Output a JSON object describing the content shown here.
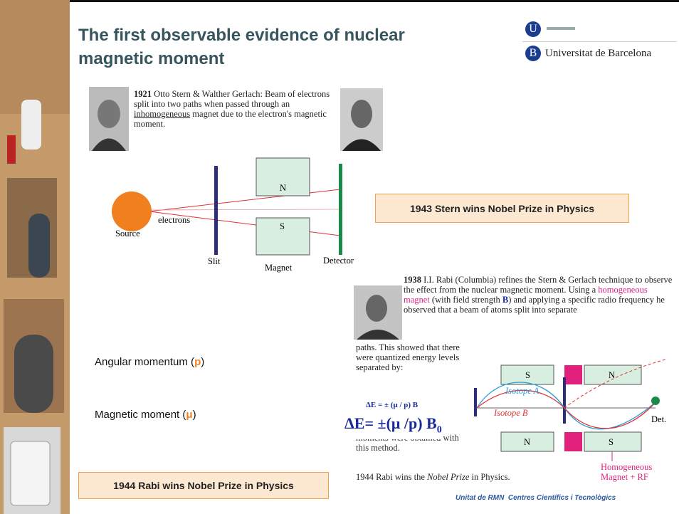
{
  "header": {
    "title_lines": [
      "The first observable evidence of nuclear",
      "magnetic moment"
    ],
    "logo_letters": [
      "U",
      "B"
    ],
    "logo_text": "Universitat de Barcelona"
  },
  "stern_gerlach": {
    "year": "1921",
    "text_start": "Otto Stern & Walther Gerlach: Beam of electrons split into two paths when passed through an",
    "underlined": "inhomogeneous",
    "text_end": "magnet due to the electron's magnetic moment.",
    "diagram": {
      "north": "N",
      "south": "S",
      "source": "Source",
      "electrons": "electrons",
      "slit": "Slit",
      "magnet": "Magnet",
      "detector": "Detector"
    }
  },
  "nobel_1943": "1943 Stern wins Nobel Prize in Physics",
  "rabi": {
    "year": "1938",
    "text_a": "I.I. Rabi (Columbia) refines the Stern & Gerlach technique to observe the effect from the nuclear magnetic moment.  Using a",
    "highlight": "homogeneous magnet",
    "text_b": "(with field strength",
    "bold_b": "B",
    "text_c": ") and applying a specific radio frequency he observed that a beam of atoms split into separate",
    "text_d": "paths.  This showed that there were quantized energy levels separated by:",
    "formula_small": "ΔE = ± (μ / p) B",
    "formula_big": "ΔE= ±(μ /p) B",
    "formula_sub": "0",
    "hidden_text": "moments were obtained with this method.",
    "nobel_prefix": "1944 Rabi wins the",
    "nobel_italic": "Nobel Prize",
    "nobel_suffix": "in Physics.",
    "diagram": {
      "top_left": "S",
      "top_right": "N",
      "bottom_left": "N",
      "bottom_right": "S",
      "isotope_a": "Isotope A",
      "isotope_b": "Isotope B",
      "det": "Det.",
      "magnet_label_1": "Homogeneous",
      "magnet_label_2": "Magnet + RF"
    }
  },
  "notes": {
    "angular_prefix": "Angular momentum (",
    "angular_symbol": "p",
    "angular_suffix": ")",
    "magnetic_prefix": "Magnetic moment (",
    "magnetic_symbol": "μ",
    "magnetic_suffix": ")"
  },
  "nobel_1944": "1944 Rabi wins Nobel Prize in Physics",
  "credit": "Unitat de RMN  Centres Científics i Tecnològics"
}
